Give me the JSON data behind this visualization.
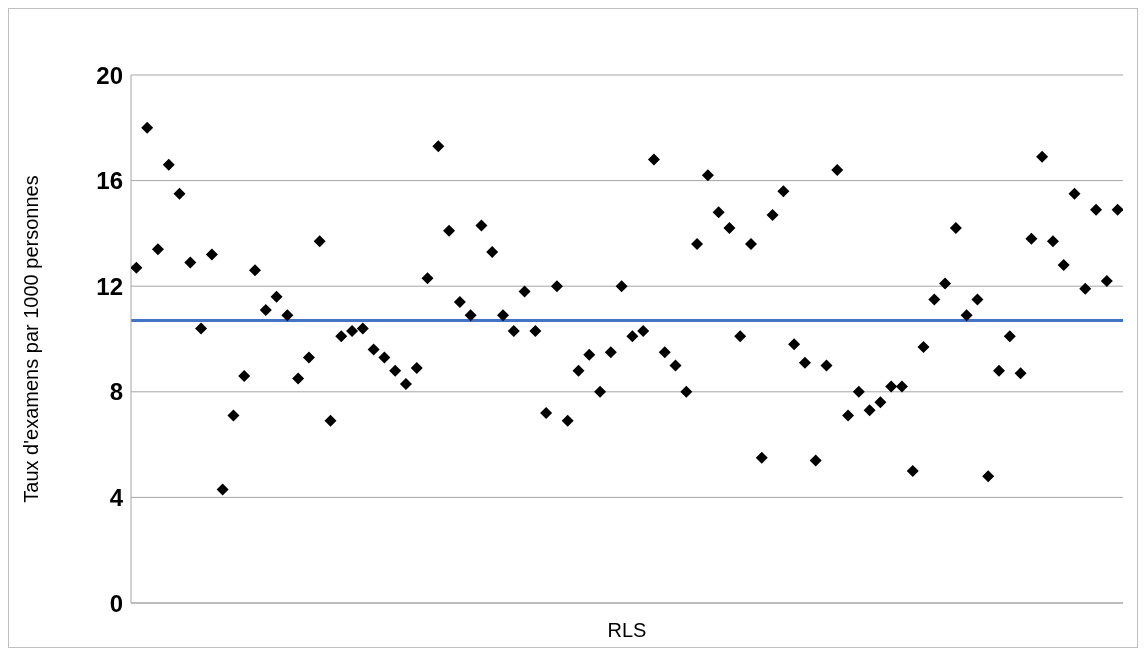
{
  "chart_data": {
    "type": "scatter",
    "xlabel": "RLS",
    "ylabel": "Taux d'examens par 1000 personnes",
    "categories": [
      null,
      null,
      null,
      null,
      null,
      null,
      null,
      null,
      null,
      null,
      null,
      null,
      null,
      null,
      null,
      null,
      null,
      null,
      null,
      null,
      null,
      null,
      null,
      null,
      null,
      null,
      null,
      null,
      null,
      null,
      null,
      null,
      null,
      null,
      null,
      null,
      null,
      null,
      null,
      null,
      null,
      null,
      null,
      null,
      null,
      null,
      null,
      null,
      null,
      null,
      null,
      null,
      null,
      null,
      null,
      null,
      null,
      null,
      null,
      null,
      null,
      null,
      null,
      null,
      null,
      null,
      null,
      null,
      null,
      null,
      null,
      null,
      null,
      null,
      null,
      null,
      null,
      null,
      null,
      null,
      null,
      null,
      null,
      null,
      null,
      null,
      null,
      null,
      null,
      null,
      null,
      null
    ],
    "series": [
      {
        "color": "#000000",
        "values": [
          12.7,
          18.0,
          13.4,
          16.6,
          15.5,
          12.9,
          10.4,
          13.2,
          4.3,
          7.1,
          8.6,
          12.6,
          11.1,
          11.6,
          10.9,
          8.5,
          9.3,
          13.7,
          6.9,
          10.1,
          10.3,
          10.4,
          9.6,
          9.3,
          8.8,
          8.3,
          8.9,
          12.3,
          17.3,
          14.1,
          11.4,
          10.9,
          14.3,
          13.3,
          10.9,
          10.3,
          11.8,
          10.3,
          7.2,
          12.0,
          6.9,
          8.8,
          9.4,
          8.0,
          9.5,
          12.0,
          10.1,
          10.3,
          16.8,
          9.5,
          9.0,
          8.0,
          13.6,
          16.2,
          14.8,
          14.2,
          10.1,
          13.6,
          5.5,
          14.7,
          15.6,
          9.8,
          9.1,
          5.4,
          9.0,
          16.4,
          7.1,
          8.0,
          7.3,
          7.6,
          8.2,
          8.2,
          5.0,
          9.7,
          11.5,
          12.1,
          14.2,
          10.9,
          11.5,
          4.8,
          8.8,
          10.1,
          8.7,
          13.8,
          16.9,
          13.7,
          12.8,
          15.5,
          11.9,
          14.9,
          12.2,
          14.9
        ]
      }
    ],
    "ylim": [
      0,
      20
    ],
    "yticks": [
      0,
      4,
      8,
      12,
      16,
      20
    ],
    "grid": "y",
    "marker": "diamond",
    "ref_lines": [
      {
        "axis": "y",
        "value": 10.7,
        "color": "#4472c4"
      }
    ]
  }
}
